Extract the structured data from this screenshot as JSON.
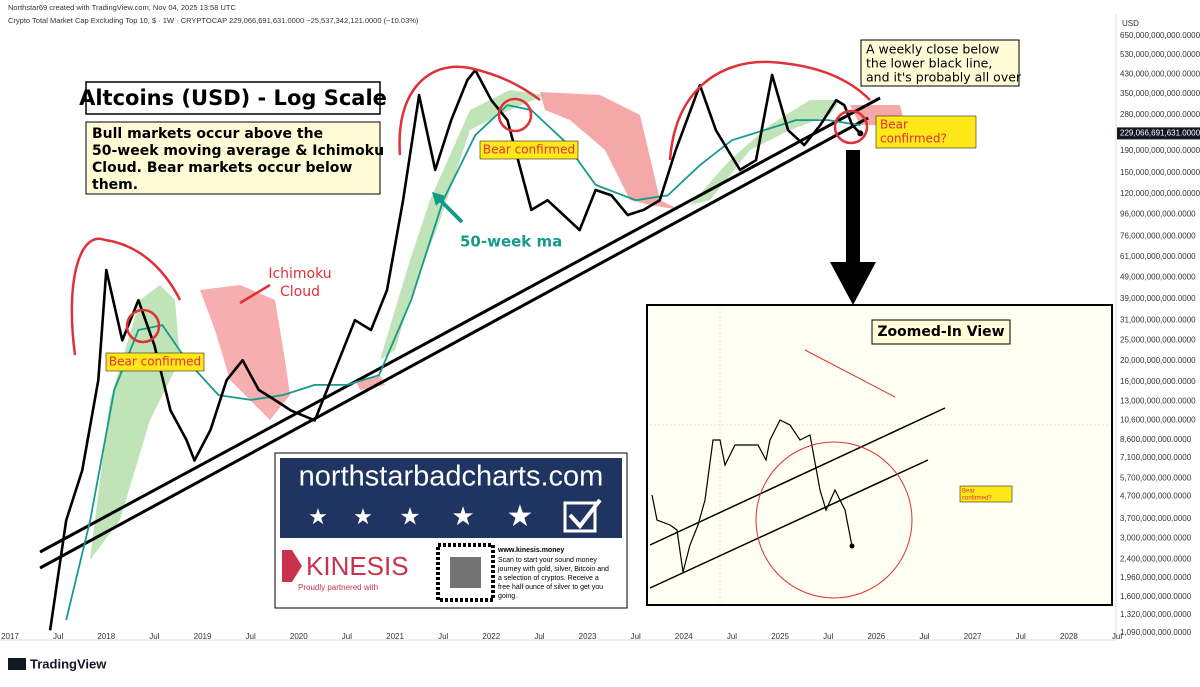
{
  "header": {
    "credit": "Northstar69 created with TradingView.com, Nov 04, 2025 13:58 UTC",
    "symbol": "Crypto Total Market Cap Excluding Top 10, $ · 1W · CRYPTOCAP  229,066,691,631.0000  −25,537,342,121.0000 (−10.03%)"
  },
  "footer": {
    "brand": "TradingView"
  },
  "chart_data": {
    "type": "line",
    "log_scale": true,
    "grid": false,
    "y_unit": "USD",
    "xlim": [
      "2016-12",
      "2028-07"
    ],
    "xticks": [
      {
        "value": "2017-01",
        "label": "2017"
      },
      {
        "value": "2017-07",
        "label": "Jul"
      },
      {
        "value": "2018-01",
        "label": "2018"
      },
      {
        "value": "2018-07",
        "label": "Jul"
      },
      {
        "value": "2019-01",
        "label": "2019"
      },
      {
        "value": "2019-07",
        "label": "Jul"
      },
      {
        "value": "2020-01",
        "label": "2020"
      },
      {
        "value": "2020-07",
        "label": "Jul"
      },
      {
        "value": "2021-01",
        "label": "2021"
      },
      {
        "value": "2021-07",
        "label": "Jul"
      },
      {
        "value": "2022-01",
        "label": "2022"
      },
      {
        "value": "2022-07",
        "label": "Jul"
      },
      {
        "value": "2023-01",
        "label": "2023"
      },
      {
        "value": "2023-07",
        "label": "Jul"
      },
      {
        "value": "2024-01",
        "label": "2024"
      },
      {
        "value": "2024-07",
        "label": "Jul"
      },
      {
        "value": "2025-01",
        "label": "2025"
      },
      {
        "value": "2025-07",
        "label": "Jul"
      },
      {
        "value": "2026-01",
        "label": "2026"
      },
      {
        "value": "2026-07",
        "label": "Jul"
      },
      {
        "value": "2027-01",
        "label": "2027"
      },
      {
        "value": "2027-07",
        "label": "Jul"
      },
      {
        "value": "2028-01",
        "label": "2028"
      },
      {
        "value": "2028-07",
        "label": "Jul"
      }
    ],
    "ylim": [
      1010000000,
      755000000000
    ],
    "yticks": [
      {
        "value": 650000000000,
        "label": "650,000,000,000.0000"
      },
      {
        "value": 530000000000,
        "label": "530,000,000,000.0000"
      },
      {
        "value": 430000000000,
        "label": "430,000,000,000.0000"
      },
      {
        "value": 350000000000,
        "label": "350,000,000,000.0000"
      },
      {
        "value": 280000000000,
        "label": "280,000,000,000.0000"
      },
      {
        "value": 190000000000,
        "label": "190,000,000,000.0000"
      },
      {
        "value": 150000000000,
        "label": "150,000,000,000.0000"
      },
      {
        "value": 120000000000,
        "label": "120,000,000,000.0000"
      },
      {
        "value": 96000000000,
        "label": "96,000,000,000.0000"
      },
      {
        "value": 76000000000,
        "label": "76,000,000,000.0000"
      },
      {
        "value": 61000000000,
        "label": "61,000,000,000.0000"
      },
      {
        "value": 49000000000,
        "label": "49,000,000,000.0000"
      },
      {
        "value": 39000000000,
        "label": "39,000,000,000.0000"
      },
      {
        "value": 31000000000,
        "label": "31,000,000,000.0000"
      },
      {
        "value": 25000000000,
        "label": "25,000,000,000.0000"
      },
      {
        "value": 20000000000,
        "label": "20,000,000,000.0000"
      },
      {
        "value": 16000000000,
        "label": "16,000,000,000.0000"
      },
      {
        "value": 13000000000,
        "label": "13,000,000,000.0000"
      },
      {
        "value": 10600000000,
        "label": "10,600,000,000.0000"
      },
      {
        "value": 8600000000,
        "label": "8,600,000,000.0000"
      },
      {
        "value": 7100000000,
        "label": "7,100,000,000.0000"
      },
      {
        "value": 5700000000,
        "label": "5,700,000,000.0000"
      },
      {
        "value": 4700000000,
        "label": "4,700,000,000.0000"
      },
      {
        "value": 3700000000,
        "label": "3,700,000,000.0000"
      },
      {
        "value": 3000000000,
        "label": "3,000,000,000.0000"
      },
      {
        "value": 2400000000,
        "label": "2,400,000,000.0000"
      },
      {
        "value": 1960000000,
        "label": "1,960,000,000.0000"
      },
      {
        "value": 1600000000,
        "label": "1,600,000,000.0000"
      },
      {
        "value": 1320000000,
        "label": "1,320,000,000.0000"
      },
      {
        "value": 1090000000,
        "label": "1,090,000,000.0000"
      }
    ],
    "last_price": {
      "value": 229066691631,
      "label": "229,066,691,631.0000"
    },
    "series": [
      {
        "color": "#000000",
        "x": [
          "2017-06",
          "2017-08",
          "2017-10",
          "2017-12",
          "2018-01",
          "2018-03",
          "2018-05",
          "2018-07",
          "2018-09",
          "2018-11",
          "2018-12",
          "2019-02",
          "2019-04",
          "2019-06",
          "2019-08",
          "2019-10",
          "2019-12",
          "2020-03",
          "2020-05",
          "2020-08",
          "2020-10",
          "2020-12",
          "2021-02",
          "2021-04",
          "2021-06",
          "2021-08",
          "2021-10",
          "2021-11",
          "2022-01",
          "2022-03",
          "2022-05",
          "2022-06",
          "2022-08",
          "2022-10",
          "2022-12",
          "2023-02",
          "2023-04",
          "2023-06",
          "2023-08",
          "2023-10",
          "2023-12",
          "2024-03",
          "2024-05",
          "2024-08",
          "2024-10",
          "2024-12",
          "2025-02",
          "2025-04",
          "2025-06",
          "2025-08",
          "2025-09",
          "2025-10",
          "2025-11"
        ],
        "values": [
          1120000000,
          3640000000,
          6200000000,
          16300000000,
          53000000000,
          25000000000,
          38400000000,
          23700000000,
          11800000000,
          8600000000,
          6900000000,
          9600000000,
          16300000000,
          20200000000,
          14700000000,
          13200000000,
          11800000000,
          10600000000,
          16300000000,
          31000000000,
          27900000000,
          42800000000,
          112000000000,
          345000000000,
          155000000000,
          264000000000,
          405000000000,
          451000000000,
          327000000000,
          264000000000,
          139000000000,
          101000000000,
          112000000000,
          95600000000,
          81300000000,
          125000000000,
          118000000000,
          95600000000,
          101000000000,
          112000000000,
          192000000000,
          384000000000,
          237000000000,
          155000000000,
          172000000000,
          428000000000,
          237000000000,
          202000000000,
          250000000000,
          327000000000,
          310000000000,
          250000000000,
          229066691631
        ]
      },
      {
        "color": "#159a8c",
        "x": [
          "2017-08",
          "2017-11",
          "2018-02",
          "2018-05",
          "2018-08",
          "2018-11",
          "2019-03",
          "2019-07",
          "2019-11",
          "2020-03",
          "2020-07",
          "2020-11",
          "2021-03",
          "2021-07",
          "2021-11",
          "2022-03",
          "2022-06",
          "2022-10",
          "2023-02",
          "2023-07",
          "2023-11",
          "2024-03",
          "2024-07",
          "2024-11",
          "2025-03",
          "2025-07",
          "2025-11"
        ],
        "values": [
          1250000000,
          3640000000,
          14700000000,
          27900000000,
          29400000000,
          20200000000,
          13900000000,
          13200000000,
          13900000000,
          15500000000,
          15500000000,
          17200000000,
          38400000000,
          112000000000,
          225000000000,
          310000000000,
          294000000000,
          213000000000,
          132000000000,
          112000000000,
          118000000000,
          163000000000,
          213000000000,
          237000000000,
          264000000000,
          264000000000,
          250000000000
        ]
      }
    ],
    "annotations": {
      "title": "Altcoins (USD) - Log Scale",
      "note": [
        "Bull markets occur above the",
        "50-week moving average & Ichimoku",
        "Cloud. Bear markets occur below",
        "them."
      ],
      "bear_1": "Bear confirmed",
      "bear_2": "Bear confirmed",
      "bear_3": [
        "Bear",
        "confirmed?"
      ],
      "ma_label": "50-week ma",
      "cloud_label": [
        "Ichimoku",
        "Cloud"
      ],
      "warning": [
        "A weekly close below",
        "the lower black line,",
        "and it's probably all over"
      ],
      "inset_title": "Zoomed-In View",
      "inset_bear": [
        "Bear",
        "confirmed?"
      ]
    },
    "ad": {
      "site": "northstarbadcharts.com",
      "brand": "KINESIS",
      "partner": "Proudly partnered with",
      "url": "www.kinesis.money",
      "pitch": [
        "Scan to start your sound money",
        "journey with gold, silver, Bitcoin and",
        "a selection of cryptos. Receive a",
        "free half ounce of silver to get you",
        "going."
      ]
    }
  }
}
